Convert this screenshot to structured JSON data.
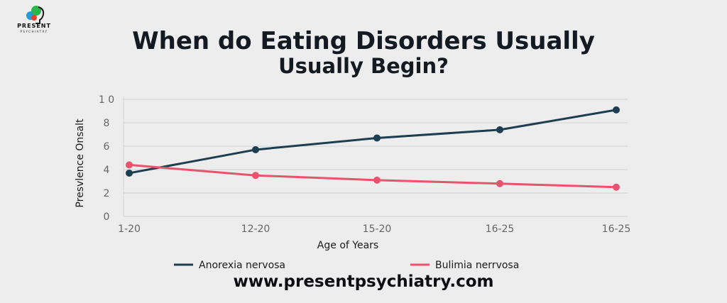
{
  "logo": {
    "name": "PRESENT",
    "sub": "PSYCHIATRY"
  },
  "title_line1": "When do Eating Disorders Usually",
  "title_line2": "Usually Begin?",
  "website": "www.presentpsychiatry.com",
  "colors": {
    "anorexia": "#1d3d50",
    "bulimia": "#e8546e",
    "grid": "#d2d2d2",
    "axis_text": "#666666"
  },
  "chart_data": {
    "type": "line",
    "title": "When do Eating Disorders Usually Usually Begin?",
    "xlabel": "Age of Years",
    "ylabel": "Presvlence Onsalt",
    "categories": [
      "1-20",
      "12-20",
      "15-20",
      "16-25",
      "16-25"
    ],
    "y_ticks": [
      "0",
      "2",
      "4",
      "6",
      "8",
      "1 0"
    ],
    "ylim": [
      0,
      10
    ],
    "grid": true,
    "legend_position": "bottom",
    "series": [
      {
        "name": "Anorexia nervosa",
        "color": "#1d3d50",
        "values": [
          3.7,
          5.7,
          6.7,
          7.4,
          9.1
        ]
      },
      {
        "name": "Bulimia nerrvosa",
        "color": "#e8546e",
        "values": [
          4.4,
          3.5,
          3.1,
          2.8,
          2.5
        ]
      }
    ]
  }
}
